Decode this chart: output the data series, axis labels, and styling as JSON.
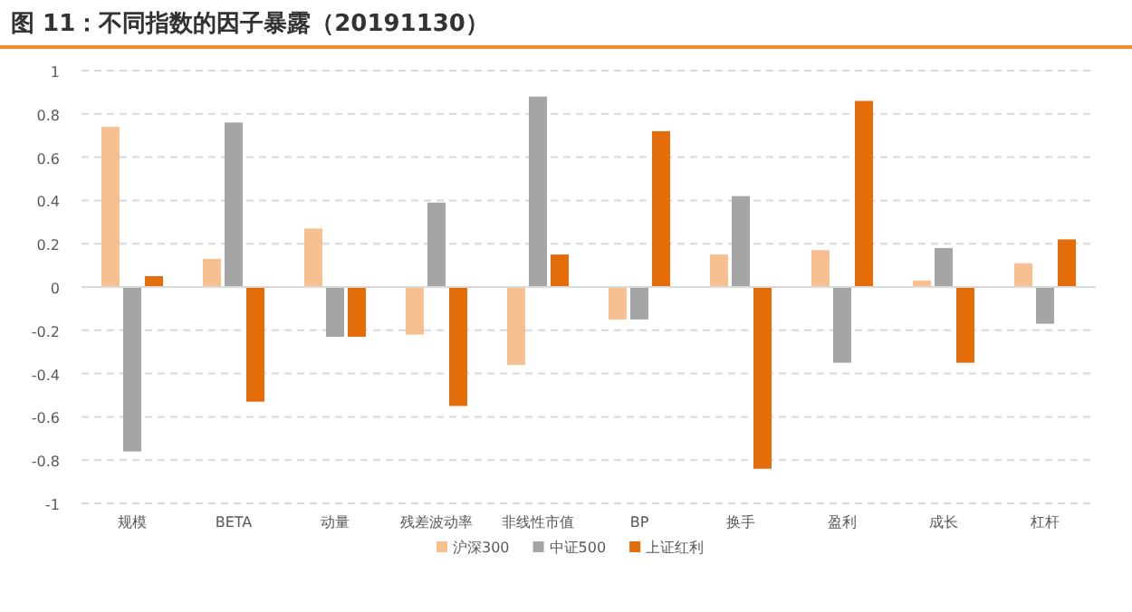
{
  "chart_data": {
    "type": "bar",
    "title": "图 11：不同指数的因子暴露（20191130）",
    "categories": [
      "规模",
      "BETA",
      "动量",
      "残差波动率",
      "非线性市值",
      "BP",
      "换手",
      "盈利",
      "成长",
      "杠杆"
    ],
    "series": [
      {
        "name": "沪深300",
        "color": "#f8bf90",
        "values": [
          0.74,
          0.13,
          0.27,
          -0.22,
          -0.36,
          -0.15,
          0.15,
          0.17,
          0.03,
          0.11
        ]
      },
      {
        "name": "中证500",
        "color": "#a5a5a5",
        "values": [
          -0.76,
          0.76,
          -0.23,
          0.39,
          0.88,
          -0.15,
          0.42,
          -0.35,
          0.18,
          -0.17
        ]
      },
      {
        "name": "上证红利",
        "color": "#e46c0a",
        "values": [
          0.05,
          -0.53,
          -0.23,
          -0.55,
          0.15,
          0.72,
          -0.84,
          0.86,
          -0.35,
          0.22
        ]
      }
    ],
    "ylim": [
      -1,
      1
    ],
    "yticks": [
      -1,
      -0.8,
      -0.6,
      -0.4,
      -0.2,
      0,
      0.2,
      0.4,
      0.6,
      0.8,
      1
    ],
    "grid": "y",
    "legend": "bottom"
  }
}
